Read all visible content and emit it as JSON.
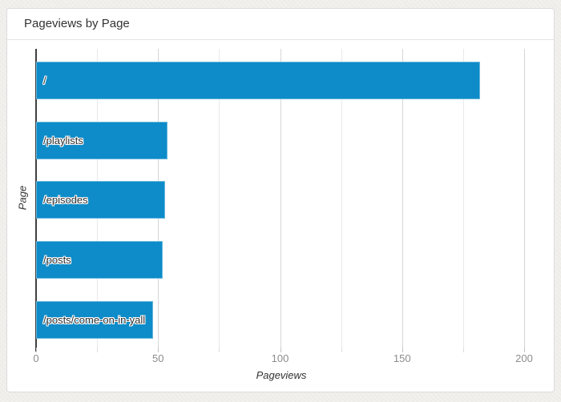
{
  "card": {
    "title": "Pageviews by Page"
  },
  "chart_data": {
    "type": "bar",
    "orientation": "horizontal",
    "title": "Pageviews by Page",
    "categories": [
      "/",
      "/playlists",
      "/episodes",
      "/posts",
      "/posts/come-on-in-yall"
    ],
    "values": [
      182,
      54,
      53,
      52,
      48
    ],
    "xlabel": "Pageviews",
    "ylabel": "Page",
    "xlim": [
      0,
      200
    ],
    "x_ticks": [
      0,
      50,
      100,
      150,
      200
    ],
    "grid_interval": 25,
    "grid": true,
    "legend": false,
    "bar_color": "#0d8cc9",
    "label_position": "inside-left"
  }
}
